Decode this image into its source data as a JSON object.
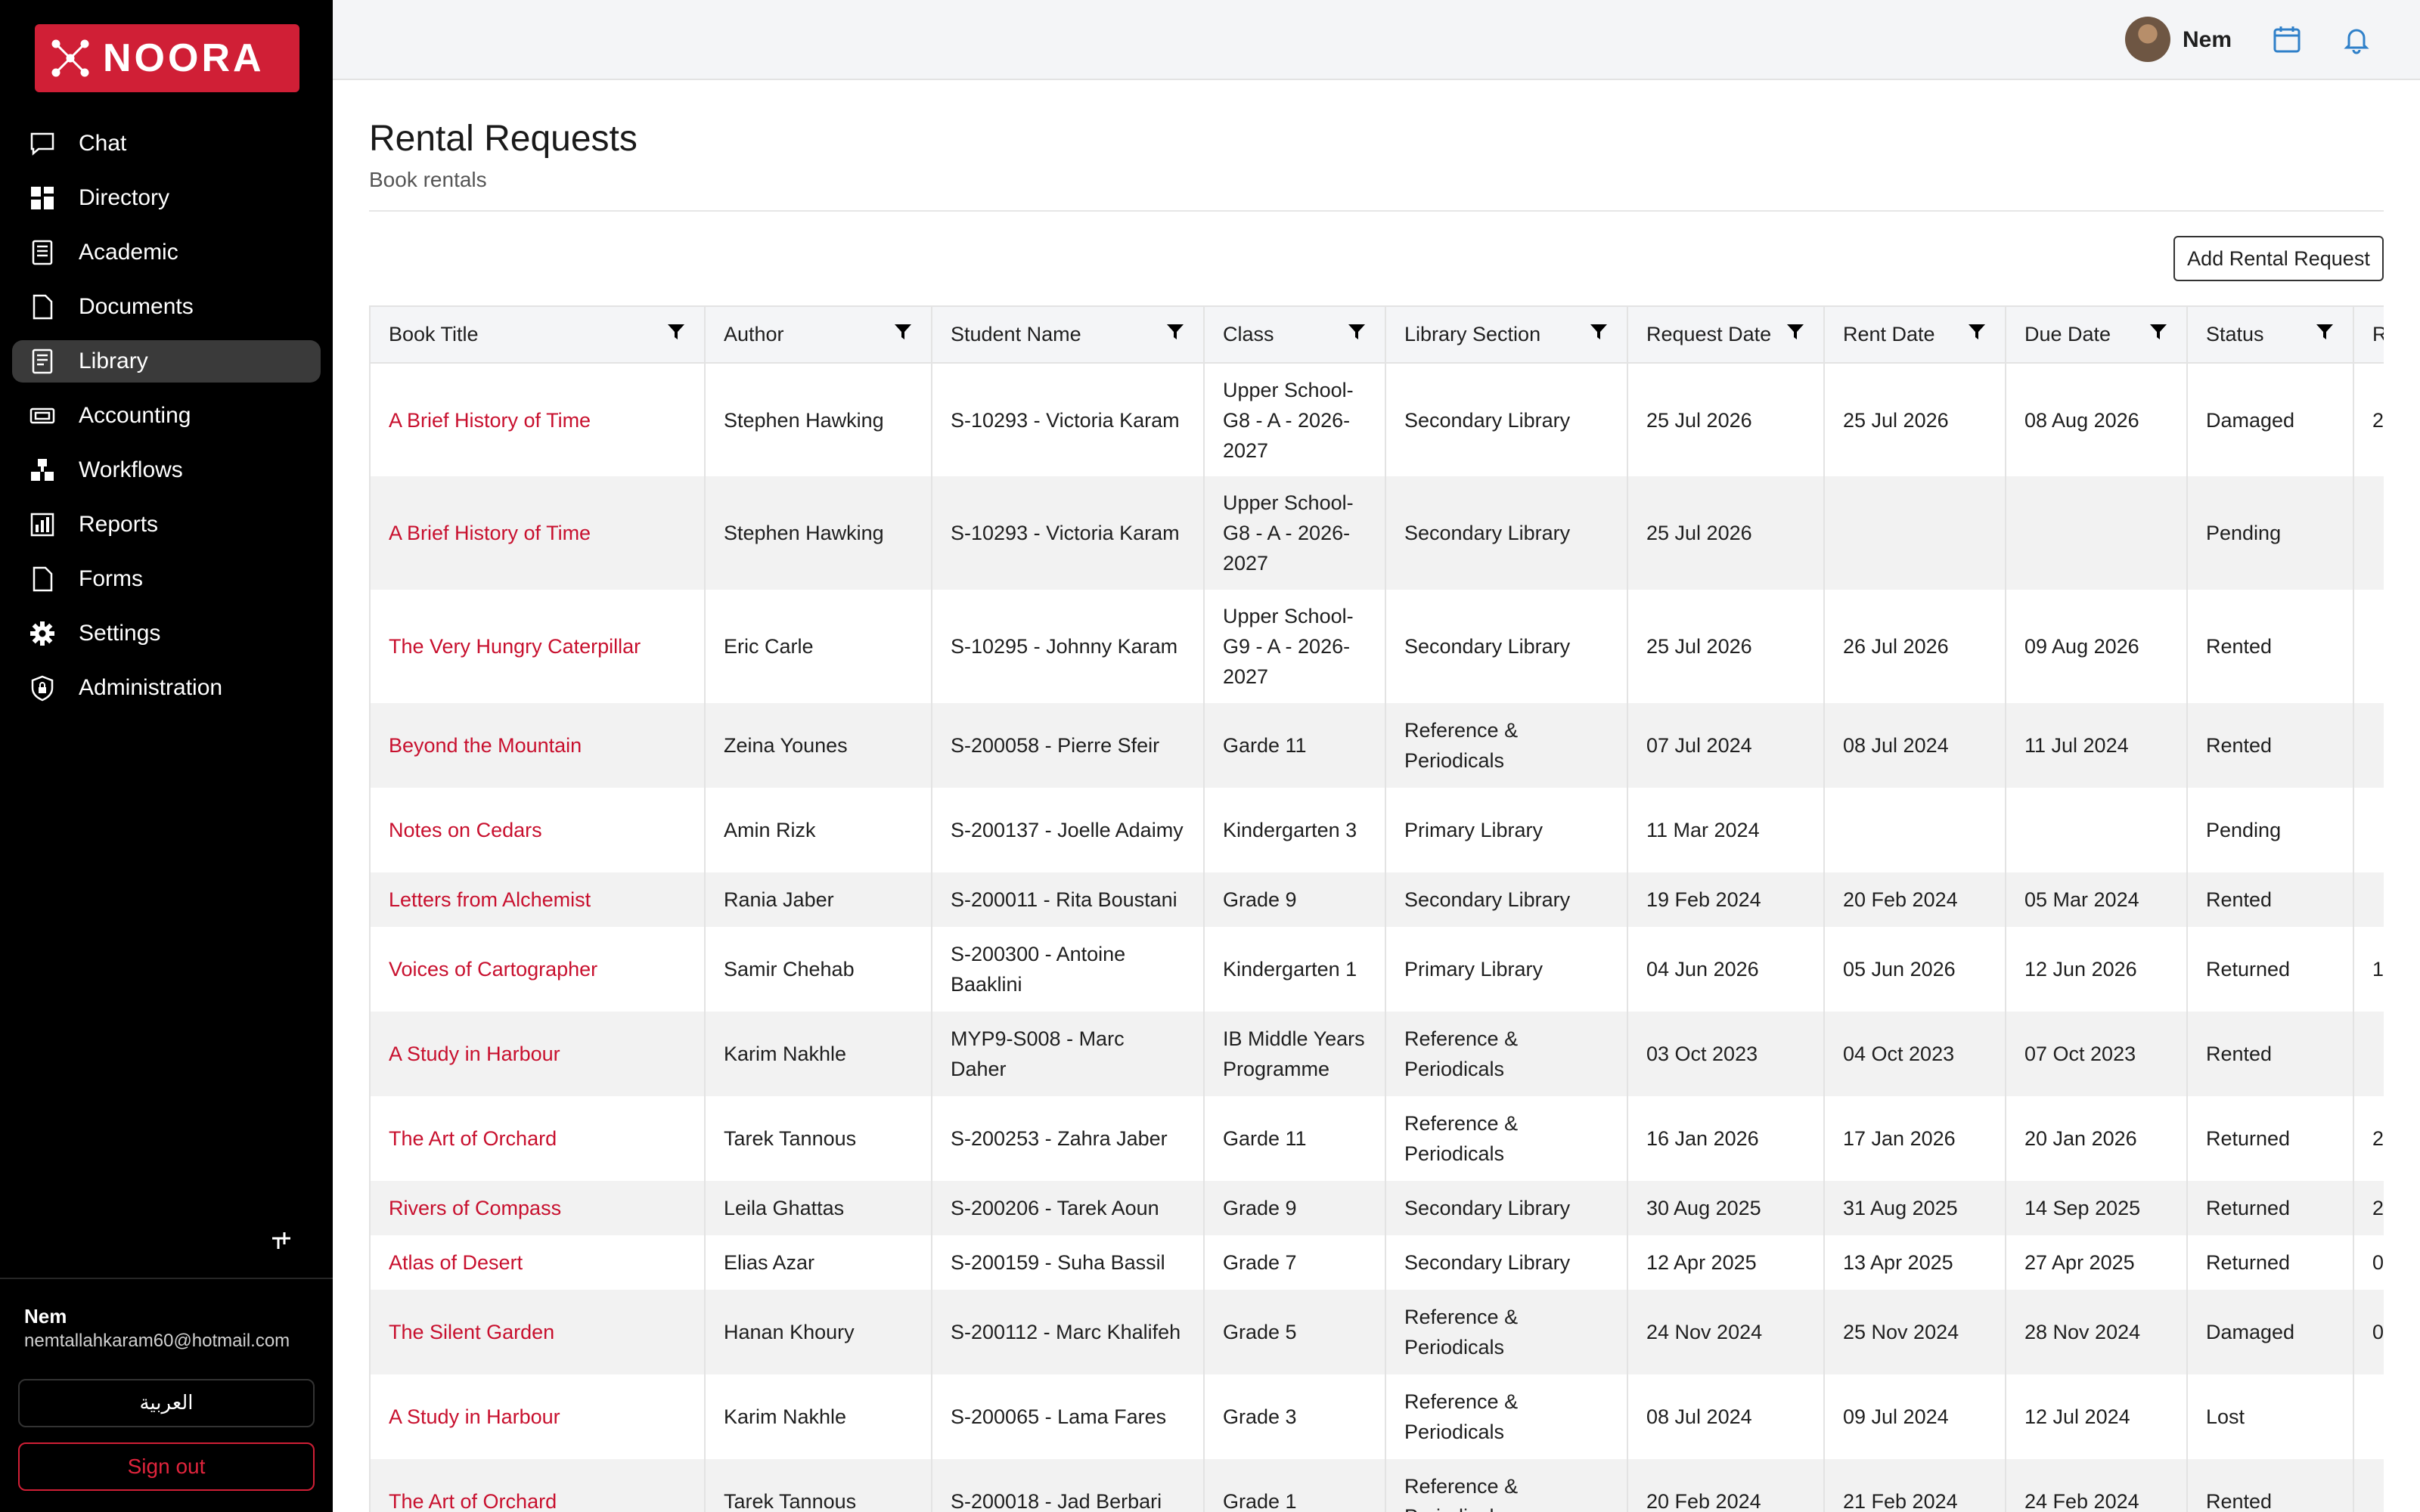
{
  "brand": {
    "name": "NOORA",
    "color": "#d01f36"
  },
  "sidebar": {
    "items": [
      {
        "label": "Chat",
        "icon": "chat-icon",
        "active": false
      },
      {
        "label": "Directory",
        "icon": "grid-icon",
        "active": false
      },
      {
        "label": "Academic",
        "icon": "book-icon",
        "active": false
      },
      {
        "label": "Documents",
        "icon": "document-icon",
        "active": false
      },
      {
        "label": "Library",
        "icon": "library-icon",
        "active": true
      },
      {
        "label": "Accounting",
        "icon": "money-icon",
        "active": false
      },
      {
        "label": "Workflows",
        "icon": "workflow-icon",
        "active": false
      },
      {
        "label": "Reports",
        "icon": "report-icon",
        "active": false
      },
      {
        "label": "Forms",
        "icon": "form-icon",
        "active": false
      },
      {
        "label": "Settings",
        "icon": "gear-icon",
        "active": false
      },
      {
        "label": "Administration",
        "icon": "shield-icon",
        "active": false
      }
    ],
    "user_name": "Nem",
    "user_email": "nemtallahkaram60@hotmail.com",
    "language_label": "العربية",
    "signout_label": "Sign out"
  },
  "topbar": {
    "user_name": "Nem"
  },
  "page": {
    "title": "Rental Requests",
    "subtitle": "Book rentals",
    "add_button": "Add Rental Request"
  },
  "table": {
    "columns": [
      "Book Title",
      "Author",
      "Student Name",
      "Class",
      "Library Section",
      "Request Date",
      "Rent Date",
      "Due Date",
      "Status",
      "R"
    ],
    "rows": [
      [
        "A Brief History of Time",
        "Stephen Hawking",
        "S-10293 - Victoria Karam",
        "Upper School-G8 - A - 2026-2027",
        "Secondary Library",
        "25 Jul 2026",
        "25 Jul 2026",
        "08 Aug 2026",
        "Damaged",
        "2"
      ],
      [
        "A Brief History of Time",
        "Stephen Hawking",
        "S-10293 - Victoria Karam",
        "Upper School-G8 - A - 2026-2027",
        "Secondary Library",
        "25 Jul 2026",
        "",
        "",
        "Pending",
        ""
      ],
      [
        "The Very Hungry Caterpillar",
        "Eric Carle",
        "S-10295 - Johnny Karam",
        "Upper School-G9 - A - 2026-2027",
        "Secondary Library",
        "25 Jul 2026",
        "26 Jul 2026",
        "09 Aug 2026",
        "Rented",
        ""
      ],
      [
        "Beyond the Mountain",
        "Zeina Younes",
        "S-200058 - Pierre Sfeir",
        "Garde 11",
        "Reference & Periodicals",
        "07 Jul 2024",
        "08 Jul 2024",
        "11 Jul 2024",
        "Rented",
        ""
      ],
      [
        "Notes on Cedars",
        "Amin Rizk",
        "S-200137 - Joelle Adaimy",
        "Kindergarten 3",
        "Primary Library",
        "11 Mar 2024",
        "",
        "",
        "Pending",
        ""
      ],
      [
        "Letters from Alchemist",
        "Rania Jaber",
        "S-200011 - Rita Boustani",
        "Grade 9",
        "Secondary Library",
        "19 Feb 2024",
        "20 Feb 2024",
        "05 Mar 2024",
        "Rented",
        ""
      ],
      [
        "Voices of Cartographer",
        "Samir Chehab",
        "S-200300 - Antoine Baaklini",
        "Kindergarten 1",
        "Primary Library",
        "04 Jun 2026",
        "05 Jun 2026",
        "12 Jun 2026",
        "Returned",
        "1"
      ],
      [
        "A Study in Harbour",
        "Karim Nakhle",
        "MYP9-S008 - Marc Daher",
        "IB Middle Years Programme",
        "Reference & Periodicals",
        "03 Oct 2023",
        "04 Oct 2023",
        "07 Oct 2023",
        "Rented",
        ""
      ],
      [
        "The Art of Orchard",
        "Tarek Tannous",
        "S-200253 - Zahra Jaber",
        "Garde 11",
        "Reference & Periodicals",
        "16 Jan 2026",
        "17 Jan 2026",
        "20 Jan 2026",
        "Returned",
        "2"
      ],
      [
        "Rivers of Compass",
        "Leila Ghattas",
        "S-200206 - Tarek Aoun",
        "Grade 9",
        "Secondary Library",
        "30 Aug 2025",
        "31 Aug 2025",
        "14 Sep 2025",
        "Returned",
        "2"
      ],
      [
        "Atlas of Desert",
        "Elias Azar",
        "S-200159 - Suha Bassil",
        "Grade 7",
        "Secondary Library",
        "12 Apr 2025",
        "13 Apr 2025",
        "27 Apr 2025",
        "Returned",
        "0"
      ],
      [
        "The Silent Garden",
        "Hanan Khoury",
        "S-200112 - Marc Khalifeh",
        "Grade 5",
        "Reference & Periodicals",
        "24 Nov 2024",
        "25 Nov 2024",
        "28 Nov 2024",
        "Damaged",
        "0"
      ],
      [
        "A Study in Harbour",
        "Karim Nakhle",
        "S-200065 - Lama Fares",
        "Grade 3",
        "Reference & Periodicals",
        "08 Jul 2024",
        "09 Jul 2024",
        "12 Jul 2024",
        "Lost",
        ""
      ],
      [
        "The Art of Orchard",
        "Tarek Tannous",
        "S-200018 - Jad Berbari",
        "Grade 1",
        "Reference & Periodicals",
        "20 Feb 2024",
        "21 Feb 2024",
        "24 Feb 2024",
        "Rented",
        ""
      ]
    ]
  }
}
